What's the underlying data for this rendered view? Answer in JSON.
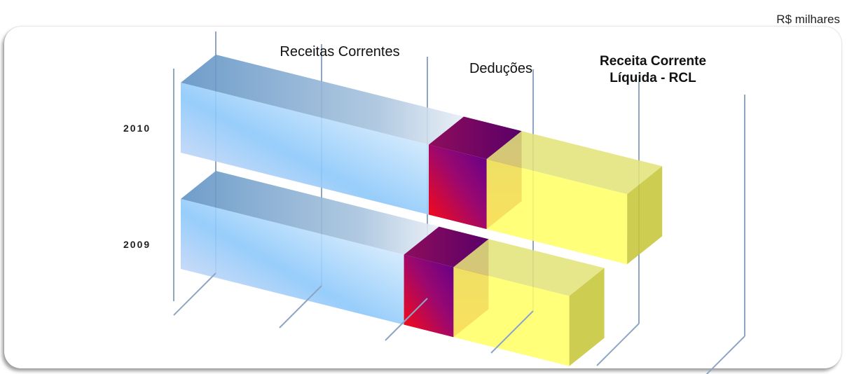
{
  "unit_label": "R$ milhares",
  "chart_data": {
    "type": "bar",
    "orientation": "horizontal",
    "stacked": true,
    "three_d": true,
    "categories": [
      "2010",
      "2009"
    ],
    "series": [
      {
        "name": "Receitas Correntes",
        "values": [
          3.0,
          2.7
        ],
        "color": "#79b8ee"
      },
      {
        "name": "Deduções",
        "values": [
          0.7,
          0.6
        ],
        "color": "#7a0a8f"
      },
      {
        "name": "Receita Corrente Líquida - RCL",
        "values": [
          1.7,
          1.4
        ],
        "color": "#ffff66"
      }
    ],
    "series_labels": [
      "Receitas Correntes",
      "Deduções",
      "Receita Corrente\nLíquida - RCL"
    ],
    "grid": true,
    "legend": "none"
  }
}
